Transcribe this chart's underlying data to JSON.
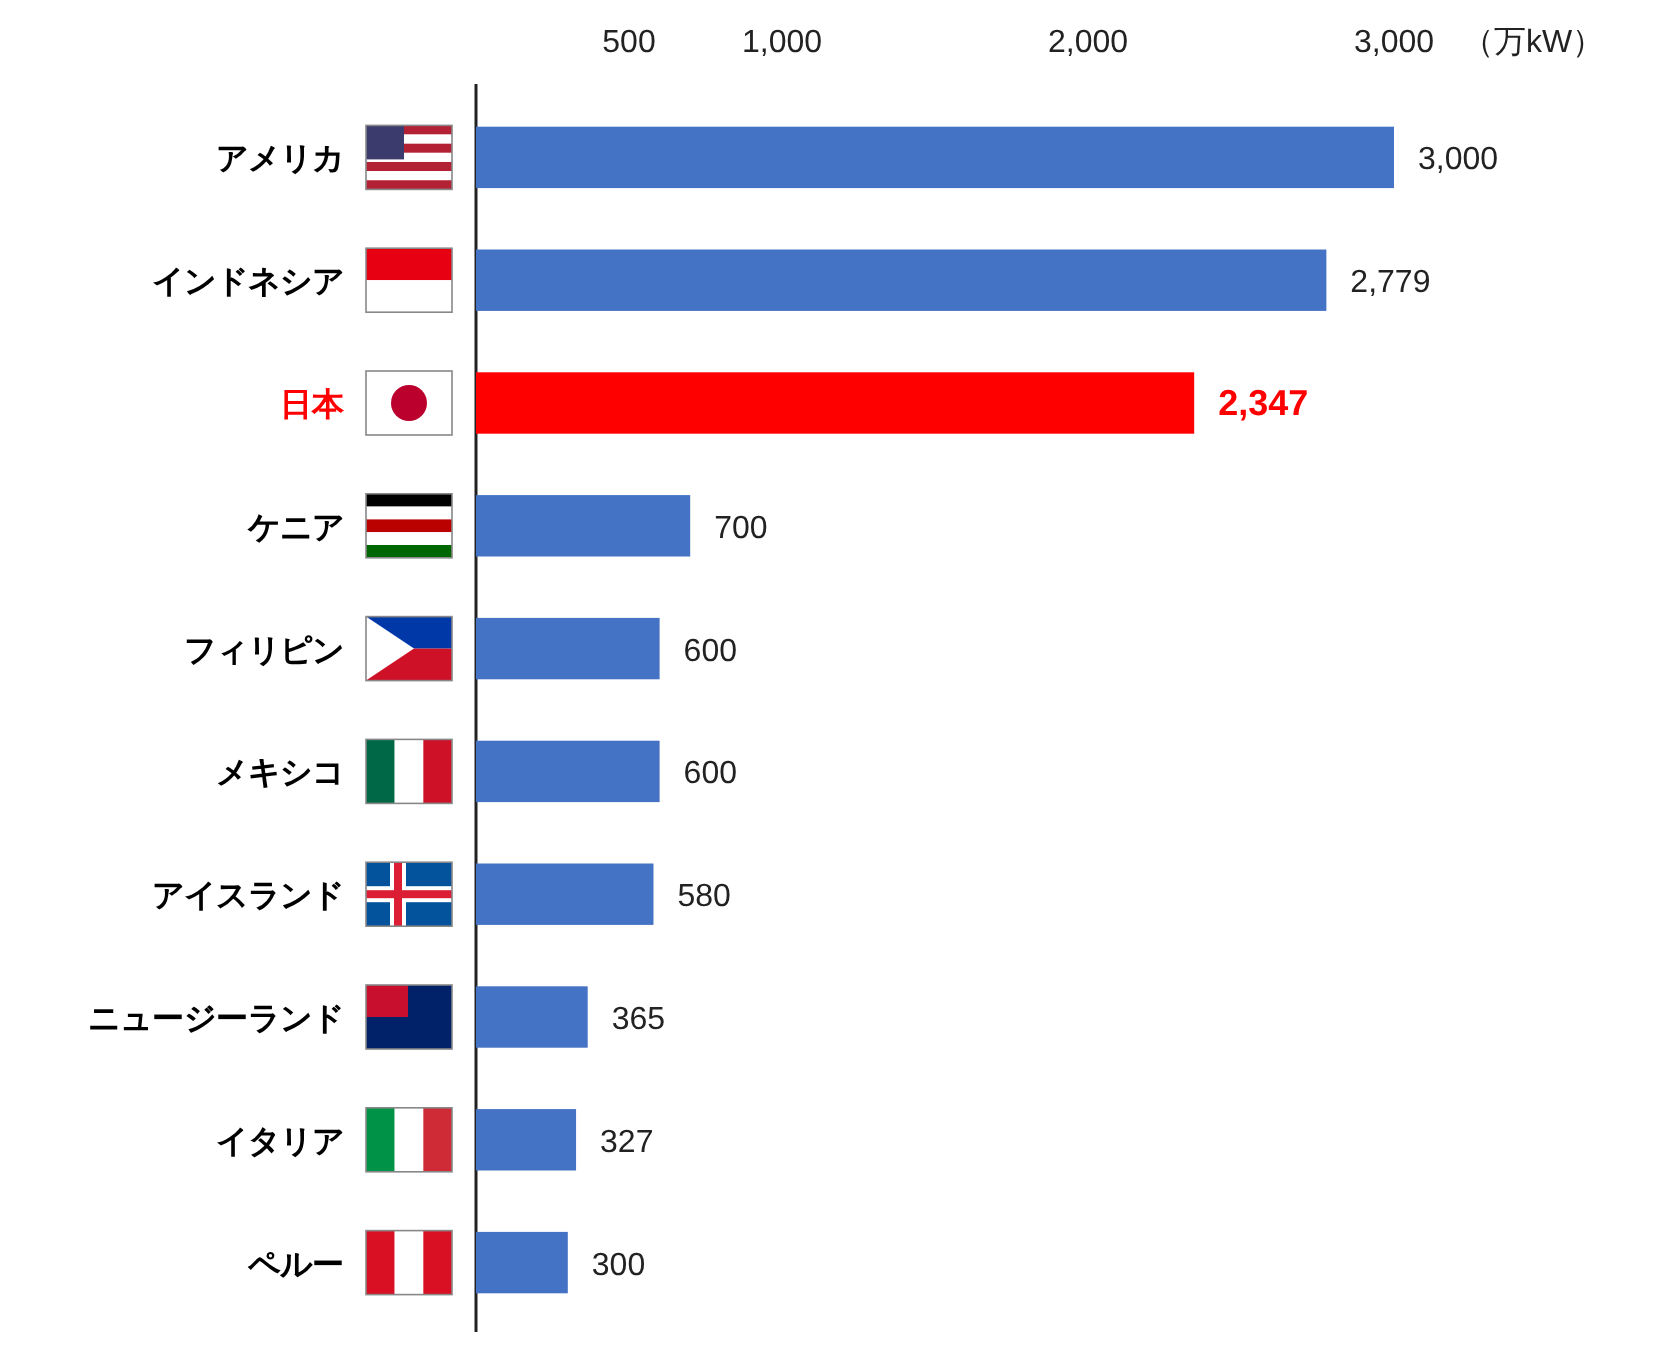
{
  "chart_data": {
    "type": "bar",
    "orientation": "horizontal",
    "xlabel": "（万kW）",
    "categories": [
      "アメリカ",
      "インドネシア",
      "日本",
      "ケニア",
      "フィリピン",
      "メキシコ",
      "アイスランド",
      "ニュージーランド",
      "イタリア",
      "ペルー"
    ],
    "values": [
      3000,
      2779,
      2347,
      700,
      600,
      600,
      580,
      365,
      327,
      300
    ],
    "colors": [
      "#4472c4",
      "#4472c4",
      "#ff0000",
      "#4472c4",
      "#4472c4",
      "#4472c4",
      "#4472c4",
      "#4472c4",
      "#4472c4",
      "#4472c4"
    ],
    "value_labels": [
      "3,000",
      "2,779",
      "2,347",
      "700",
      "600",
      "600",
      "580",
      "365",
      "327",
      "300"
    ],
    "xlim": [
      0,
      3000
    ],
    "xticks": [
      {
        "value": 500,
        "label": "500"
      },
      {
        "value": 1000,
        "label": "1,000"
      },
      {
        "value": 2000,
        "label": "2,000"
      },
      {
        "value": 3000,
        "label": "3,000"
      }
    ],
    "grid": false
  }
}
